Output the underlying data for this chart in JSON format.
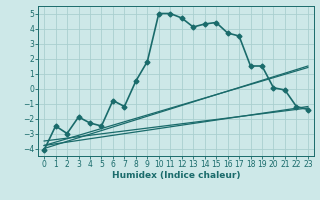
{
  "xlabel": "Humidex (Indice chaleur)",
  "background_color": "#cde8e8",
  "grid_color": "#aacfcf",
  "line_color": "#1a6b6b",
  "xlim": [
    -0.5,
    23.5
  ],
  "ylim": [
    -4.5,
    5.5
  ],
  "yticks": [
    -4,
    -3,
    -2,
    -1,
    0,
    1,
    2,
    3,
    4,
    5
  ],
  "xticks": [
    0,
    1,
    2,
    3,
    4,
    5,
    6,
    7,
    8,
    9,
    10,
    11,
    12,
    13,
    14,
    15,
    16,
    17,
    18,
    19,
    20,
    21,
    22,
    23
  ],
  "main_line": {
    "x": [
      0,
      1,
      2,
      3,
      4,
      5,
      6,
      7,
      8,
      9,
      10,
      11,
      12,
      13,
      14,
      15,
      16,
      17,
      18,
      19,
      20,
      21,
      22,
      23
    ],
    "y": [
      -4.1,
      -2.5,
      -3.0,
      -1.9,
      -2.3,
      -2.5,
      -0.8,
      -1.2,
      0.5,
      1.8,
      5.0,
      5.0,
      4.7,
      4.1,
      4.3,
      4.4,
      3.7,
      3.5,
      1.5,
      1.5,
      0.05,
      -0.1,
      -1.2,
      -1.4
    ]
  },
  "reg_lines": [
    {
      "x": [
        0,
        23
      ],
      "y": [
        -3.5,
        -1.3
      ]
    },
    {
      "x": [
        0,
        23
      ],
      "y": [
        -3.8,
        -1.2
      ]
    },
    {
      "x": [
        0,
        23
      ],
      "y": [
        -4.0,
        1.5
      ]
    },
    {
      "x": [
        0,
        23
      ],
      "y": [
        -3.8,
        1.4
      ]
    }
  ]
}
